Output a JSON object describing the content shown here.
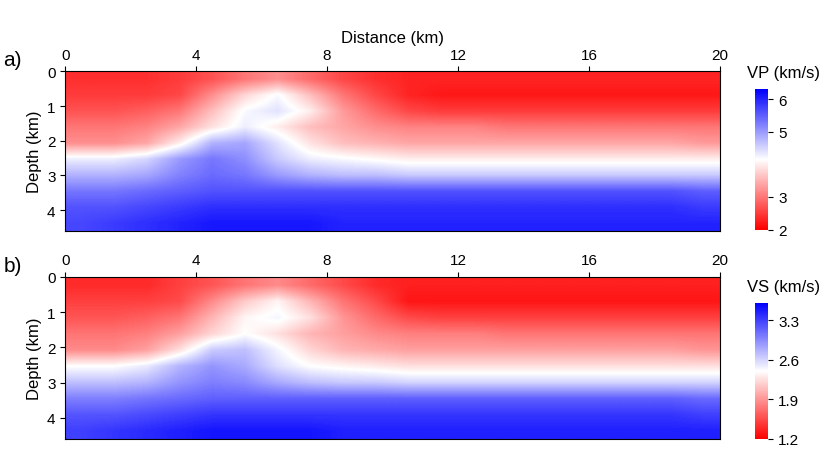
{
  "chart_data": [
    {
      "type": "heatmap",
      "title": "a)",
      "x_label": "Distance (km)",
      "y_label": "Depth (km)",
      "xlim": [
        0,
        20
      ],
      "ylim": [
        4.6,
        0
      ],
      "xticks": [
        0,
        4,
        8,
        12,
        16,
        20
      ],
      "yticks": [
        0,
        1,
        2,
        3,
        4
      ],
      "x_edges": [
        0,
        20
      ],
      "y_edges": [
        0,
        4.6
      ],
      "colorbar": {
        "label": "VP (km/s)",
        "range": [
          2,
          6.3
        ],
        "ticks": [
          2,
          3,
          5,
          6
        ]
      },
      "cells": [
        [
          2.4,
          2.4,
          2.4,
          2.5,
          2.7,
          3.0,
          3.2,
          2.9,
          2.6,
          2.4,
          2.3,
          2.3,
          2.3,
          2.3,
          2.3,
          2.3,
          2.3,
          2.3,
          2.3,
          2.3
        ],
        [
          2.5,
          2.5,
          2.5,
          2.6,
          3.2,
          3.8,
          4.2,
          3.6,
          3.0,
          2.6,
          2.3,
          2.2,
          2.2,
          2.2,
          2.2,
          2.2,
          2.2,
          2.2,
          2.2,
          2.2
        ],
        [
          2.7,
          2.7,
          2.8,
          3.0,
          3.6,
          4.2,
          4.4,
          4.0,
          3.3,
          2.9,
          2.6,
          2.5,
          2.5,
          2.5,
          2.5,
          2.5,
          2.5,
          2.5,
          2.5,
          2.5
        ],
        [
          3.0,
          3.0,
          3.1,
          3.4,
          3.9,
          4.3,
          4.0,
          3.6,
          3.4,
          3.2,
          3.1,
          3.1,
          3.1,
          3.0,
          3.0,
          3.0,
          3.0,
          3.0,
          3.0,
          3.0
        ],
        [
          3.2,
          3.2,
          3.4,
          4.0,
          4.8,
          4.9,
          4.4,
          3.9,
          3.6,
          3.5,
          3.4,
          3.4,
          3.4,
          3.4,
          3.4,
          3.4,
          3.4,
          3.4,
          3.4,
          3.3
        ],
        [
          4.3,
          4.3,
          4.5,
          5.0,
          5.3,
          5.1,
          4.6,
          4.3,
          4.2,
          4.1,
          4.0,
          4.0,
          4.0,
          4.0,
          4.0,
          4.0,
          4.0,
          4.0,
          4.0,
          4.0
        ],
        [
          4.8,
          4.8,
          4.9,
          5.2,
          5.4,
          5.3,
          5.0,
          4.8,
          4.7,
          4.7,
          4.6,
          4.6,
          4.6,
          4.6,
          4.6,
          4.6,
          4.6,
          4.6,
          4.6,
          4.6
        ],
        [
          5.3,
          5.3,
          5.4,
          5.5,
          5.6,
          5.6,
          5.6,
          5.6,
          5.6,
          5.6,
          5.6,
          5.6,
          5.6,
          5.6,
          5.6,
          5.6,
          5.6,
          5.6,
          5.6,
          5.5
        ],
        [
          5.6,
          5.6,
          5.7,
          5.8,
          5.9,
          5.9,
          5.9,
          5.9,
          5.9,
          5.9,
          5.9,
          5.9,
          5.9,
          5.9,
          5.9,
          5.9,
          5.9,
          5.9,
          5.9,
          5.8
        ],
        [
          5.7,
          5.8,
          5.9,
          6.0,
          6.1,
          6.1,
          6.1,
          6.1,
          6.0,
          6.0,
          6.0,
          6.0,
          6.0,
          6.0,
          6.0,
          6.0,
          6.0,
          6.0,
          6.0,
          6.0
        ]
      ]
    },
    {
      "type": "heatmap",
      "title": "b)",
      "y_label": "Depth (km)",
      "xlim": [
        0,
        20
      ],
      "ylim": [
        4.6,
        0
      ],
      "xticks": [
        0,
        4,
        8,
        12,
        16,
        20
      ],
      "yticks": [
        0,
        1,
        2,
        3,
        4
      ],
      "x_edges": [
        0,
        20
      ],
      "y_edges": [
        0,
        4.6
      ],
      "colorbar": {
        "label": "VS (km/s)",
        "range": [
          1.2,
          3.6
        ],
        "ticks": [
          1.2,
          1.9,
          2.6,
          3.3
        ]
      },
      "cells": [
        [
          1.4,
          1.4,
          1.4,
          1.5,
          1.6,
          1.75,
          1.85,
          1.7,
          1.55,
          1.4,
          1.35,
          1.35,
          1.35,
          1.35,
          1.35,
          1.35,
          1.35,
          1.35,
          1.35,
          1.35
        ],
        [
          1.5,
          1.5,
          1.5,
          1.55,
          1.85,
          2.15,
          2.35,
          2.05,
          1.75,
          1.55,
          1.3,
          1.3,
          1.3,
          1.3,
          1.3,
          1.3,
          1.3,
          1.3,
          1.3,
          1.3
        ],
        [
          1.6,
          1.6,
          1.65,
          1.75,
          2.05,
          2.35,
          2.45,
          2.25,
          1.9,
          1.7,
          1.55,
          1.5,
          1.5,
          1.5,
          1.5,
          1.5,
          1.5,
          1.5,
          1.5,
          1.5
        ],
        [
          1.75,
          1.75,
          1.8,
          1.95,
          2.2,
          2.4,
          2.25,
          2.05,
          1.95,
          1.85,
          1.8,
          1.8,
          1.8,
          1.75,
          1.75,
          1.75,
          1.75,
          1.75,
          1.75,
          1.75
        ],
        [
          1.85,
          1.85,
          1.95,
          2.25,
          2.65,
          2.7,
          2.45,
          2.2,
          2.05,
          2.0,
          1.95,
          1.95,
          1.95,
          1.95,
          1.95,
          1.95,
          1.95,
          1.95,
          1.95,
          1.9
        ],
        [
          2.4,
          2.4,
          2.5,
          2.75,
          2.9,
          2.8,
          2.55,
          2.4,
          2.35,
          2.3,
          2.25,
          2.25,
          2.25,
          2.25,
          2.25,
          2.25,
          2.25,
          2.25,
          2.25,
          2.25
        ],
        [
          2.7,
          2.7,
          2.75,
          2.9,
          3.0,
          2.95,
          2.8,
          2.7,
          2.65,
          2.65,
          2.6,
          2.6,
          2.6,
          2.6,
          2.6,
          2.6,
          2.6,
          2.6,
          2.6,
          2.6
        ],
        [
          3.0,
          3.0,
          3.05,
          3.1,
          3.15,
          3.15,
          3.15,
          3.15,
          3.15,
          3.15,
          3.15,
          3.15,
          3.15,
          3.15,
          3.15,
          3.15,
          3.15,
          3.15,
          3.15,
          3.1
        ],
        [
          3.2,
          3.2,
          3.25,
          3.3,
          3.35,
          3.35,
          3.35,
          3.35,
          3.35,
          3.35,
          3.35,
          3.35,
          3.35,
          3.35,
          3.35,
          3.35,
          3.35,
          3.35,
          3.35,
          3.3
        ],
        [
          3.3,
          3.35,
          3.4,
          3.45,
          3.5,
          3.5,
          3.5,
          3.5,
          3.45,
          3.45,
          3.45,
          3.45,
          3.45,
          3.45,
          3.45,
          3.45,
          3.45,
          3.45,
          3.45,
          3.45
        ]
      ]
    }
  ]
}
